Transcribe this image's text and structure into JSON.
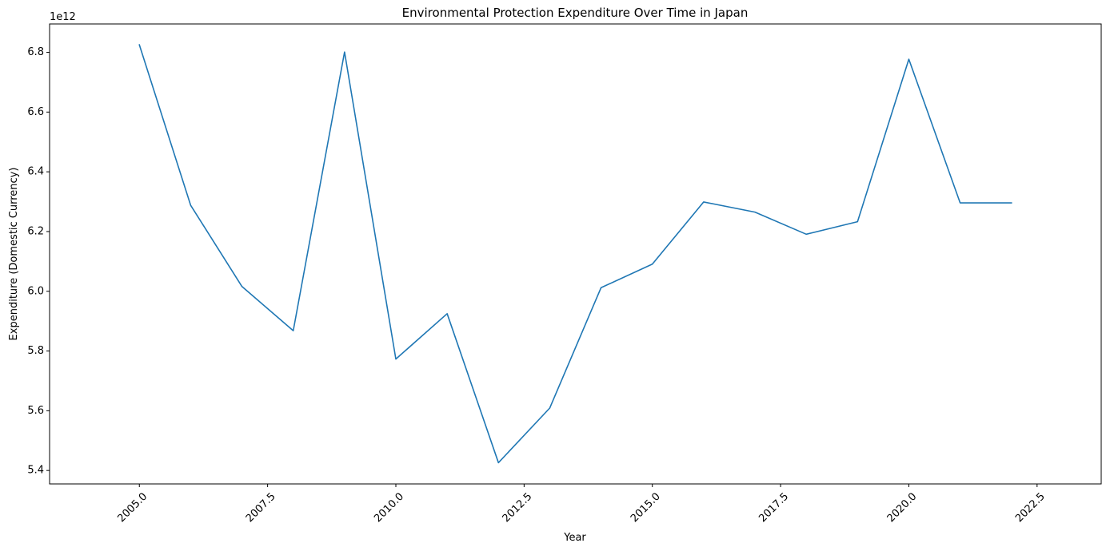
{
  "chart_data": {
    "type": "line",
    "title": "Environmental Protection Expenditure Over Time in Japan",
    "xlabel": "Year",
    "ylabel": "Expenditure (Domestic Currency)",
    "y_offset_label": "1e12",
    "x": [
      2005,
      2006,
      2007,
      2008,
      2009,
      2010,
      2011,
      2012,
      2013,
      2014,
      2015,
      2016,
      2017,
      2018,
      2019,
      2020,
      2021,
      2022
    ],
    "series": [
      {
        "values": [
          6825000000000.0,
          6288000000000.0,
          6016000000000.0,
          5868000000000.0,
          6801000000000.0,
          5773000000000.0,
          5925000000000.0,
          5426000000000.0,
          5609000000000.0,
          6012000000000.0,
          6091000000000.0,
          6299000000000.0,
          6265000000000.0,
          6191000000000.0,
          6233000000000.0,
          6777000000000.0,
          6296000000000.0,
          6296000000000.0
        ],
        "color": "#1f77b4"
      }
    ],
    "xlim": [
      2003.25,
      2023.75
    ],
    "ylim": [
      5355000000000.0,
      6895000000000.0
    ],
    "xticks": [
      2005.0,
      2007.5,
      2010.0,
      2012.5,
      2015.0,
      2017.5,
      2020.0,
      2022.5
    ],
    "xtick_labels": [
      "2005.0",
      "2007.5",
      "2010.0",
      "2012.5",
      "2015.0",
      "2017.5",
      "2020.0",
      "2022.5"
    ],
    "yticks": [
      5400000000000.0,
      5600000000000.0,
      5800000000000.0,
      6000000000000.0,
      6200000000000.0,
      6400000000000.0,
      6600000000000.0,
      6800000000000.0
    ],
    "ytick_labels": [
      "5.4",
      "5.6",
      "5.8",
      "6.0",
      "6.2",
      "6.4",
      "6.6",
      "6.8"
    ],
    "xtick_rotation": 45,
    "grid": false,
    "legend": "none"
  }
}
